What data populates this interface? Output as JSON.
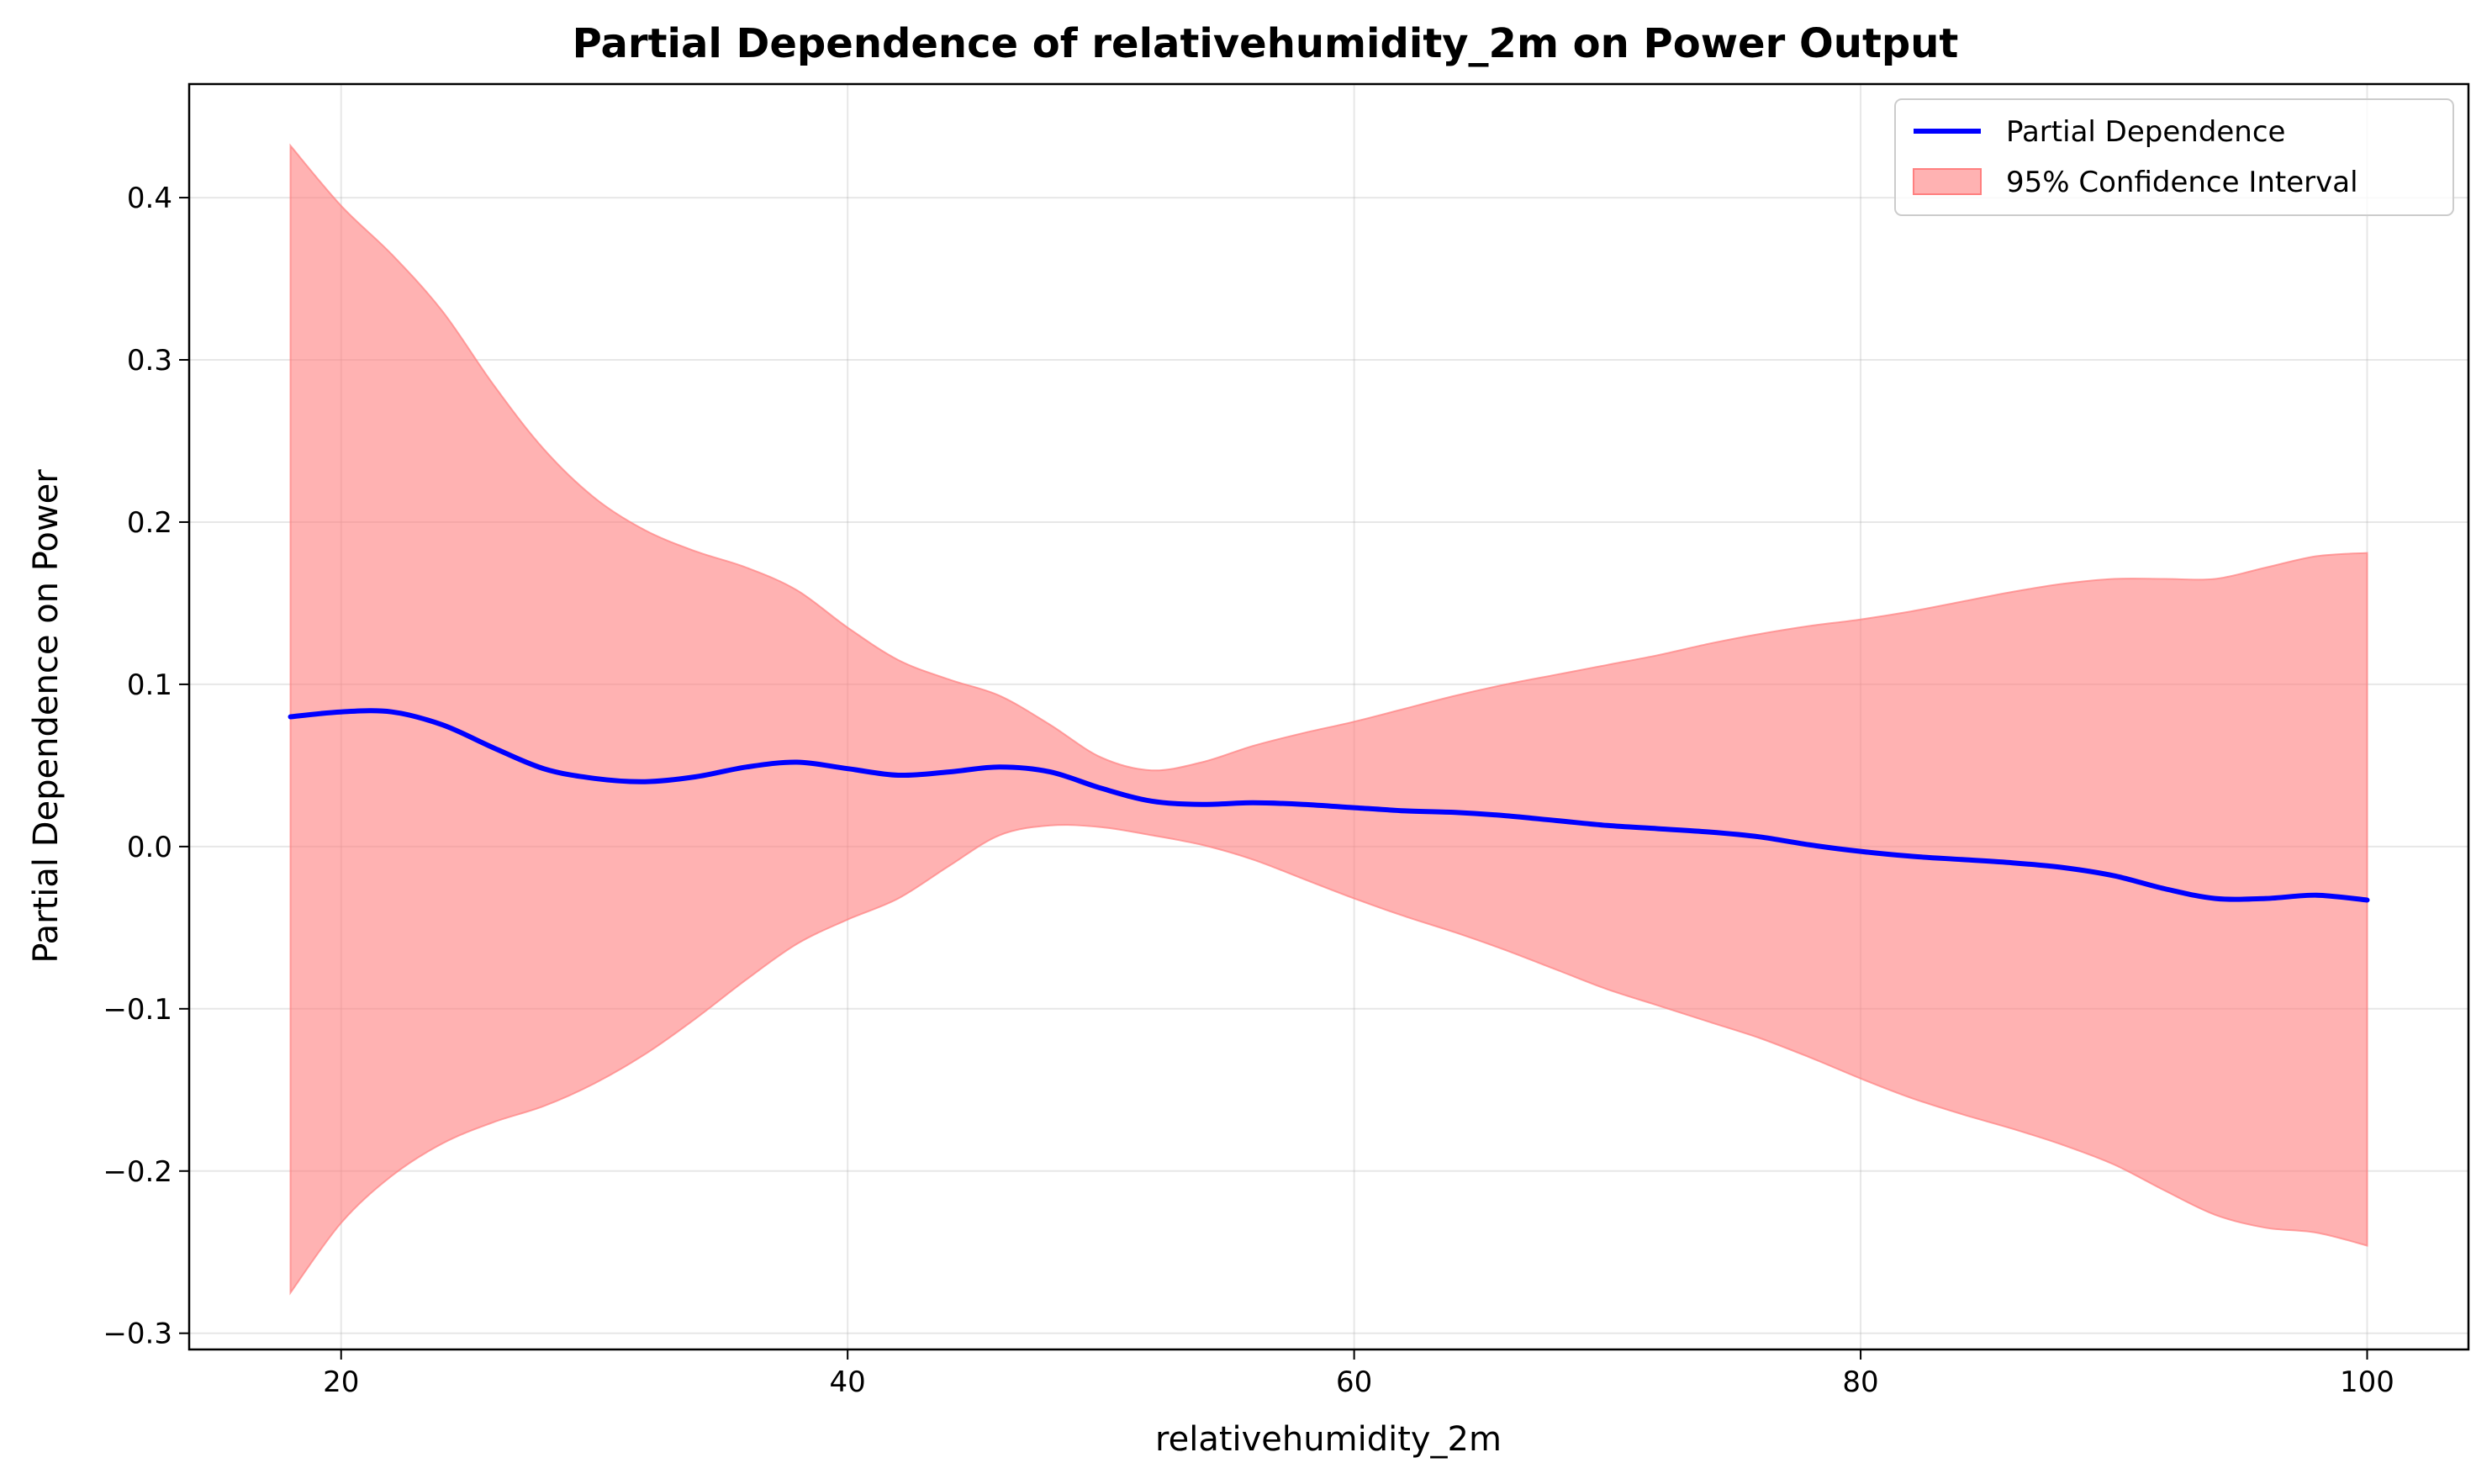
{
  "chart_data": {
    "type": "line",
    "title": "Partial Dependence of relativehumidity_2m on Power Output",
    "xlabel": "relativehumidity_2m",
    "ylabel": "Partial Dependence on Power",
    "xlim": [
      14,
      104
    ],
    "ylim": [
      -0.31,
      0.47
    ],
    "x_ticks": [
      20,
      40,
      60,
      80,
      100
    ],
    "x_tick_labels": [
      "20",
      "40",
      "60",
      "80",
      "100"
    ],
    "y_ticks": [
      -0.3,
      -0.2,
      -0.1,
      0.0,
      0.1,
      0.2,
      0.3,
      0.4
    ],
    "y_tick_labels": [
      "−0.3",
      "−0.2",
      "−0.1",
      "0.0",
      "0.1",
      "0.2",
      "0.3",
      "0.4"
    ],
    "grid": true,
    "legend_position": "top-right",
    "series": [
      {
        "name": "Partial Dependence",
        "kind": "line",
        "color": "#0000ff",
        "x": [
          18,
          20,
          22,
          24,
          26,
          28,
          30,
          32,
          34,
          36,
          38,
          40,
          42,
          44,
          46,
          48,
          50,
          52,
          54,
          56,
          58,
          60,
          62,
          64,
          66,
          68,
          70,
          72,
          74,
          76,
          78,
          80,
          82,
          84,
          86,
          88,
          90,
          92,
          94,
          96,
          98,
          100
        ],
        "y": [
          0.08,
          0.083,
          0.083,
          0.075,
          0.061,
          0.048,
          0.042,
          0.04,
          0.043,
          0.049,
          0.052,
          0.048,
          0.044,
          0.046,
          0.049,
          0.046,
          0.036,
          0.028,
          0.026,
          0.027,
          0.026,
          0.024,
          0.022,
          0.021,
          0.019,
          0.016,
          0.013,
          0.011,
          0.009,
          0.006,
          0.001,
          -0.003,
          -0.006,
          -0.008,
          -0.01,
          -0.013,
          -0.018,
          -0.026,
          -0.032,
          -0.032,
          -0.03,
          -0.033
        ]
      },
      {
        "name": "95% Confidence Interval",
        "kind": "band",
        "color": "#ff7f7f",
        "x": [
          18,
          20,
          22,
          24,
          26,
          28,
          30,
          32,
          34,
          36,
          38,
          40,
          42,
          44,
          46,
          48,
          50,
          52,
          54,
          56,
          58,
          60,
          62,
          64,
          66,
          68,
          70,
          72,
          74,
          76,
          78,
          80,
          82,
          84,
          86,
          88,
          90,
          92,
          94,
          96,
          98,
          100
        ],
        "upper": [
          0.432,
          0.395,
          0.365,
          0.33,
          0.285,
          0.245,
          0.215,
          0.195,
          0.182,
          0.172,
          0.158,
          0.135,
          0.115,
          0.103,
          0.093,
          0.075,
          0.055,
          0.047,
          0.052,
          0.062,
          0.07,
          0.077,
          0.085,
          0.093,
          0.1,
          0.106,
          0.112,
          0.118,
          0.125,
          0.131,
          0.136,
          0.14,
          0.145,
          0.151,
          0.157,
          0.162,
          0.165,
          0.165,
          0.165,
          0.172,
          0.179,
          0.181
        ],
        "lower": [
          -0.275,
          -0.232,
          -0.203,
          -0.183,
          -0.17,
          -0.16,
          -0.146,
          -0.128,
          -0.106,
          -0.082,
          -0.06,
          -0.045,
          -0.032,
          -0.012,
          0.007,
          0.013,
          0.012,
          0.007,
          0.001,
          -0.008,
          -0.02,
          -0.032,
          -0.043,
          -0.053,
          -0.064,
          -0.076,
          -0.088,
          -0.098,
          -0.108,
          -0.118,
          -0.13,
          -0.143,
          -0.155,
          -0.165,
          -0.174,
          -0.184,
          -0.196,
          -0.212,
          -0.227,
          -0.235,
          -0.238,
          -0.246
        ]
      }
    ]
  }
}
